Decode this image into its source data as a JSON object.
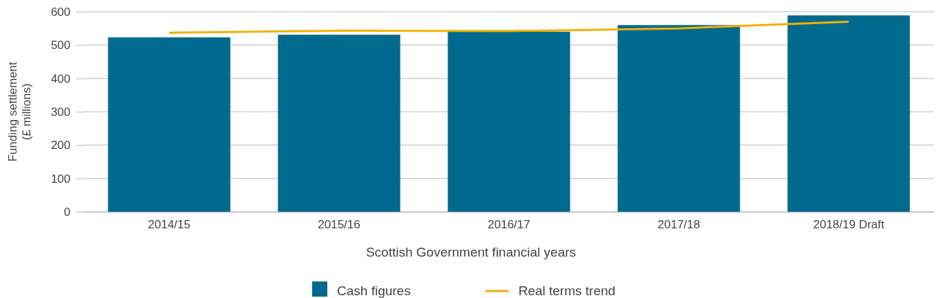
{
  "chart_data": {
    "type": "bar",
    "xlabel": "Scottish Government financial years",
    "ylabel": "Funding settlement\n(£ millions)",
    "categories": [
      "2014/15",
      "2015/16",
      "2016/17",
      "2017/18",
      "2018/19 Draft"
    ],
    "series": [
      {
        "name": "Cash figures",
        "color": "#006a8e",
        "values": [
          523,
          531,
          540,
          560,
          589
        ]
      },
      {
        "name": "Real terms trend",
        "type": "line",
        "color": "#f5b000",
        "values": [
          537,
          543,
          542,
          550,
          570
        ]
      }
    ],
    "ylim": [
      0,
      600
    ],
    "yticks": [
      0,
      100,
      200,
      300,
      400,
      500,
      600
    ],
    "grid": "y",
    "legend": "bottom",
    "marker": "none"
  }
}
